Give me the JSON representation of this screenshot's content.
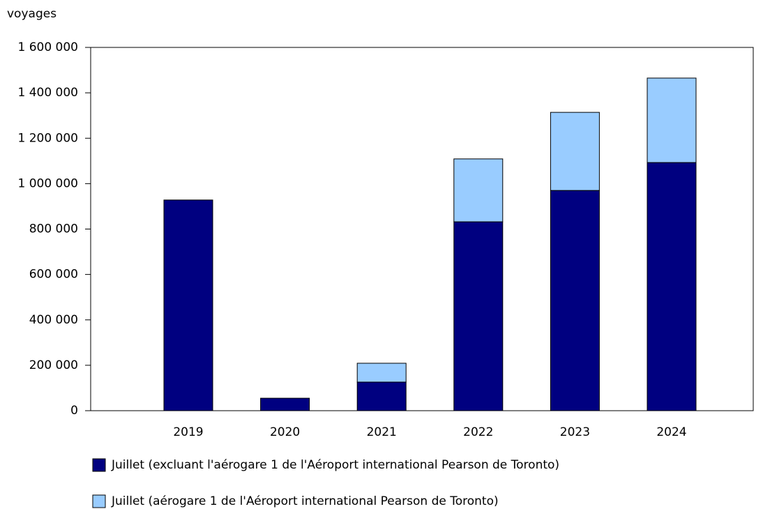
{
  "chart_data": {
    "type": "bar",
    "stacked": true,
    "y_label": "voyages",
    "categories": [
      "2019",
      "2020",
      "2021",
      "2022",
      "2023",
      "2024"
    ],
    "series": [
      {
        "name": "Juillet (excluant l'aérogare 1 de l'Aéroport international Pearson de Toronto)",
        "color": "#000080",
        "values": [
          928000,
          55000,
          126000,
          832000,
          970000,
          1093000
        ]
      },
      {
        "name": "Juillet (aérogare 1 de l'Aéroport international Pearson de Toronto)",
        "color": "#99ccff",
        "values": [
          0,
          0,
          83000,
          277000,
          344000,
          372000
        ]
      }
    ],
    "ylim": [
      0,
      1600000
    ],
    "yticks": [
      0,
      {
        "value": 200000,
        "label": "200 000"
      },
      {
        "value": 400000,
        "label": "400 000"
      },
      {
        "value": 600000,
        "label": "600 000"
      },
      {
        "value": 800000,
        "label": "800 000"
      },
      {
        "value": 1000000,
        "label": "1 000 000"
      },
      {
        "value": 1200000,
        "label": "1 200 000"
      },
      {
        "value": 1400000,
        "label": "1 400 000"
      },
      {
        "value": 1600000,
        "label": "1 600 000"
      }
    ],
    "grid": false
  }
}
